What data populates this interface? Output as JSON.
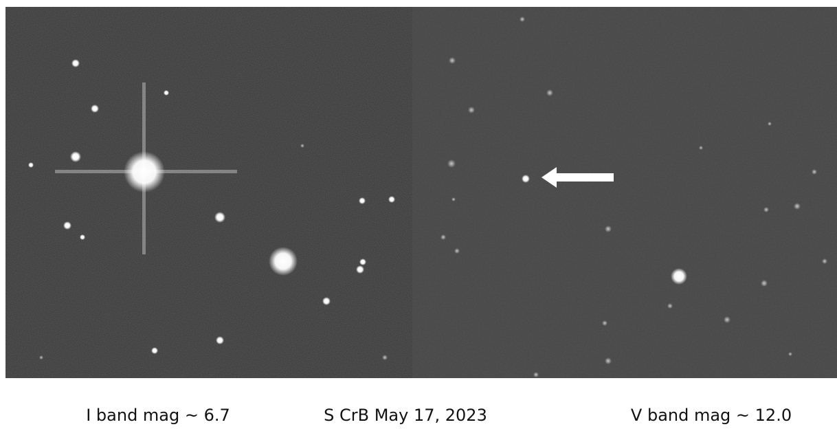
{
  "captions": {
    "left": "I band mag ~ 6.7",
    "center": "S CrB May 17, 2023",
    "right": "V band mag ~ 12.0"
  }
}
